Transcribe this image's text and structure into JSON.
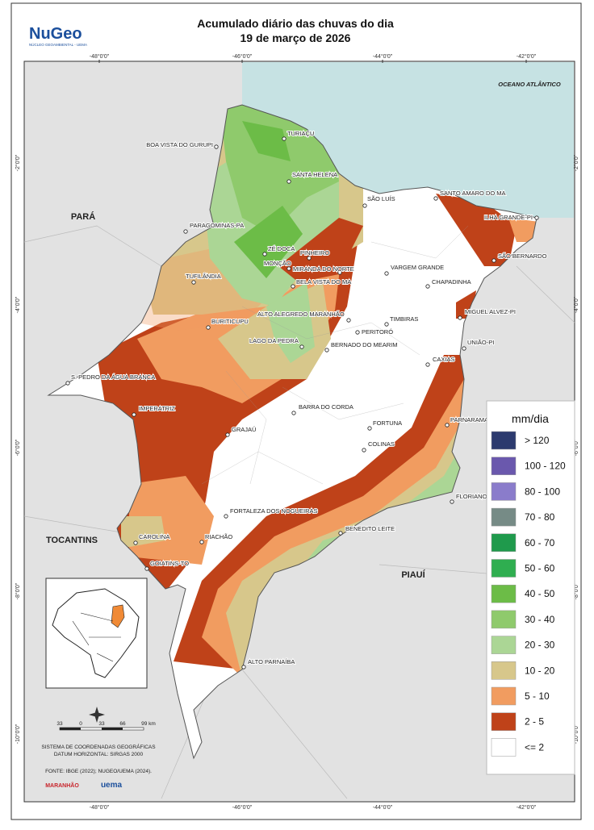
{
  "header": {
    "title": "Acumulado diário das chuvas do dia",
    "subtitle": "19 de março de 2026",
    "logo": "NuGeo",
    "logo_subtitle": "NÚCLEO GEOAMBIENTAL - UEMA"
  },
  "coordinates": {
    "longitudes": [
      "-48°0'0\"",
      "-46°0'0\"",
      "-44°0'0\"",
      "-42°0'0\""
    ],
    "latitudes": [
      "-2°0'0\"",
      "-4°0'0\"",
      "-6°0'0\"",
      "-8°0'0\"",
      "-10°0'0\""
    ]
  },
  "ocean": "OCEANO ATLÂNTICO",
  "regions": [
    "PARÁ",
    "TOCANTINS",
    "PIAUÍ"
  ],
  "cities": [
    "TURIAÇU",
    "BOA VISTA DO GURUPI",
    "SANTA HELENA",
    "SÃO LUÍS",
    "SANTO AMARO DO MA",
    "ILHA GRANDE-PI",
    "PARAGOMINAS-PA",
    "ZÉ DOCA",
    "MONÇÃO",
    "PINHEIRO",
    "MIRANDA DO NORTE",
    "BELA VISTA DO MA",
    "TUFILÂNDIA",
    "VARGEM GRANDE",
    "CHAPADINHA",
    "SÃO BERNARDO",
    "ALTO ALEGREDO MARANHÃO",
    "TIMBIRAS",
    "MIGUEL ALVEZ-PI",
    "BURITICUPU",
    "PERITORÓ",
    "LAGO DA PEDRA",
    "BERNADO DO MEARIM",
    "UNIÃO-PI",
    "CAXIAS",
    "S. PEDRO DA ÁGUA BRANCA",
    "IMPERATRIZ",
    "BARRA DO CORDA",
    "PARNARAMA",
    "FORTUNA",
    "GRAJAÚ",
    "COLINAS",
    "FLORIANO",
    "FORTALEZA DOS NOGUEIRAS",
    "BENEDITO LEITE",
    "CAROLINA",
    "RIACHÃO",
    "GOIATINS-TO",
    "ALTO PARNAÍBA"
  ],
  "legend": {
    "title": "mm/dia",
    "items": [
      {
        "label": "> 120",
        "color": "#2c3a6e"
      },
      {
        "label": "100 - 120",
        "color": "#6a58ad"
      },
      {
        "label": "80 - 100",
        "color": "#8a7ccb"
      },
      {
        "label": "70 - 80",
        "color": "#768b86"
      },
      {
        "label": "60 - 70",
        "color": "#1f9a4c"
      },
      {
        "label": "50 - 60",
        "color": "#2fae50"
      },
      {
        "label": "40 - 50",
        "color": "#6cbc47"
      },
      {
        "label": "30 - 40",
        "color": "#8fca6c"
      },
      {
        "label": "20 - 30",
        "color": "#abd695"
      },
      {
        "label": "10 - 20",
        "color": "#d7c78b"
      },
      {
        "label": "5 - 10",
        "color": "#f19c60"
      },
      {
        "label": "2 - 5",
        "color": "#bf4219"
      },
      {
        "label": "<= 2",
        "color": "#ffffff"
      }
    ]
  },
  "scale": {
    "ticks": [
      "33",
      "0",
      "33",
      "66",
      "99 km"
    ],
    "system": "SISTEMA DE COORDENADAS GEOGRÁFICAS",
    "datum": "DATUM HORIZONTAL: SIRGAS 2000",
    "source": "FONTE: IBGE (2022); NUGEO/UEMA (2024).",
    "logos": [
      "MARANHÃO",
      "uema"
    ]
  }
}
